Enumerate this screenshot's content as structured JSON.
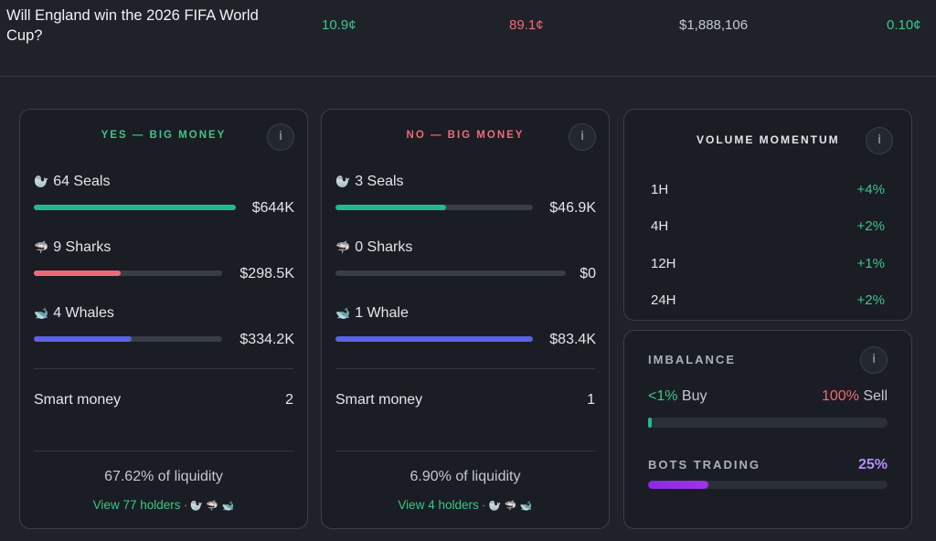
{
  "market": {
    "title": "Will England win the 2026 FIFA World Cup?",
    "yes_price": "10.9¢",
    "no_price": "89.1¢",
    "volume": "$1,888,106",
    "spread": "0.10¢"
  },
  "info_icon": "i",
  "yes_panel": {
    "title": "YES — BIG MONEY",
    "title_color": "#3fc58a",
    "rows": [
      {
        "icon": "seal-icon",
        "glyph": "🦭",
        "label": "64 Seals",
        "amount": "$644K",
        "fill": 1.0,
        "color": "#22b892"
      },
      {
        "icon": "shark-icon",
        "glyph": "🦈",
        "label": "9 Sharks",
        "amount": "$298.5K",
        "fill": 0.46,
        "color": "#f0697a"
      },
      {
        "icon": "whale-icon",
        "glyph": "🐋",
        "label": "4 Whales",
        "amount": "$334.2K",
        "fill": 0.52,
        "color": "#5b62e6"
      }
    ],
    "smart_money_label": "Smart money",
    "smart_money_count": "2",
    "liquidity": "67.62% of liquidity",
    "holders_link": "View 77 holders",
    "holders_glyphs": "· 🦭 🦈 🐋"
  },
  "no_panel": {
    "title": "NO — BIG MONEY",
    "title_color": "#f0697a",
    "rows": [
      {
        "icon": "seal-icon",
        "glyph": "🦭",
        "label": "3 Seals",
        "amount": "$46.9K",
        "fill": 0.56,
        "color": "#22b892"
      },
      {
        "icon": "shark-icon",
        "glyph": "🦈",
        "label": "0 Sharks",
        "amount": "$0",
        "fill": 0.0,
        "color": "#f0697a"
      },
      {
        "icon": "whale-icon",
        "glyph": "🐋",
        "label": "1 Whale",
        "amount": "$83.4K",
        "fill": 1.0,
        "color": "#5b62e6"
      }
    ],
    "smart_money_label": "Smart money",
    "smart_money_count": "1",
    "liquidity": "6.90% of liquidity",
    "holders_link": "View 4 holders",
    "holders_glyphs": "· 🦭 🦈 🐋"
  },
  "volume_momentum": {
    "title": "VOLUME MOMENTUM",
    "rows": [
      {
        "label": "1H",
        "value": "+4%"
      },
      {
        "label": "4H",
        "value": "+2%"
      },
      {
        "label": "12H",
        "value": "+1%"
      },
      {
        "label": "24H",
        "value": "+2%"
      }
    ]
  },
  "imbalance": {
    "title": "IMBALANCE",
    "buy_pct": "<1%",
    "buy_label": "Buy",
    "sell_pct": "100%",
    "sell_label": "Sell",
    "buy_fill": 0.01,
    "buy_color": "#22b892",
    "bots_title": "BOTS TRADING",
    "bots_pct": "25%",
    "bots_fill": 0.25,
    "bots_color": "#a033e8"
  }
}
